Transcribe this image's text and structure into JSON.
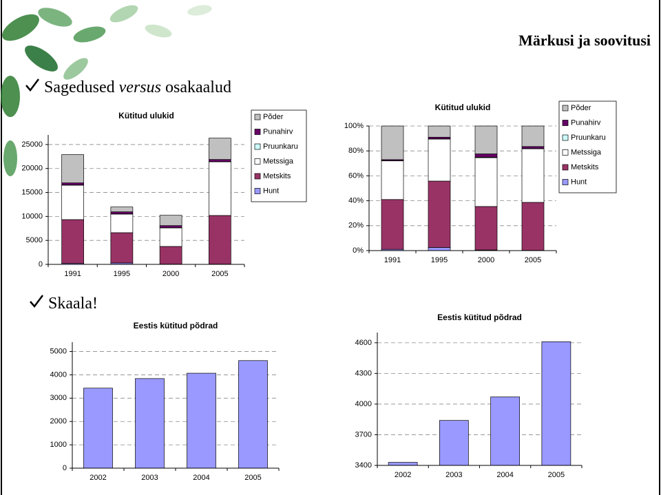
{
  "slide": {
    "title": "Märkusi ja soovitusi",
    "bullets": [
      [
        "Sagedused ",
        "versus",
        " osakaalud"
      ],
      [
        "Skaala!"
      ]
    ]
  },
  "chart_data": [
    {
      "type": "bar",
      "stacked": true,
      "title": "Kütitud ulukid",
      "categories": [
        "1991",
        "1995",
        "2000",
        "2005"
      ],
      "series": [
        {
          "name": "Hunt",
          "color": "#9999ff",
          "values": [
            200,
            300,
            50,
            50
          ]
        },
        {
          "name": "Metskits",
          "color": "#993366",
          "values": [
            9140,
            6310,
            3690,
            10150
          ]
        },
        {
          "name": "Metssiga",
          "color": "#ffffff",
          "values": [
            7180,
            3880,
            3870,
            11200
          ]
        },
        {
          "name": "Pruunkaru",
          "color": "#ccffff",
          "values": [
            50,
            40,
            40,
            40
          ]
        },
        {
          "name": "Punahirv",
          "color": "#660066",
          "values": [
            430,
            430,
            440,
            440
          ]
        },
        {
          "name": "Põder",
          "color": "#c0c0c0",
          "values": [
            5900,
            1010,
            2150,
            4450
          ]
        }
      ],
      "ylim": [
        0,
        27000
      ],
      "yticks": [
        0,
        5000,
        10000,
        15000,
        20000,
        25000
      ],
      "grid": true,
      "legend": "right"
    },
    {
      "type": "bar",
      "stacked": true,
      "title": "Kütitud ulukid",
      "categories": [
        "1991",
        "1995",
        "2000",
        "2005"
      ],
      "series": [
        {
          "name": "Hunt",
          "color": "#9999ff",
          "values": [
            1,
            2.5,
            0.5,
            0.2
          ]
        },
        {
          "name": "Metskits",
          "color": "#993366",
          "values": [
            40,
            53.3,
            34.9,
            38.5
          ]
        },
        {
          "name": "Metssiga",
          "color": "#ffffff",
          "values": [
            31,
            33.7,
            39.2,
            43
          ]
        },
        {
          "name": "Pruunkaru",
          "color": "#ccffff",
          "values": [
            0.2,
            0.2,
            0.4,
            0.2
          ]
        },
        {
          "name": "Punahirv",
          "color": "#660066",
          "values": [
            0.8,
            1.3,
            2.6,
            1.6
          ]
        },
        {
          "name": "Põder",
          "color": "#c0c0c0",
          "values": [
            27,
            9,
            22.4,
            16.5
          ]
        }
      ],
      "ylim": [
        0,
        100
      ],
      "yticks": [
        {
          "value": 0,
          "label": "0%"
        },
        {
          "value": 20,
          "label": "20%"
        },
        {
          "value": 40,
          "label": "40%"
        },
        {
          "value": 60,
          "label": "60%"
        },
        {
          "value": 80,
          "label": "80%"
        },
        {
          "value": 100,
          "label": "100%"
        }
      ],
      "grid": true,
      "legend": "right"
    },
    {
      "type": "bar",
      "title": "Eestis kütitud põdrad",
      "categories": [
        "2002",
        "2003",
        "2004",
        "2005"
      ],
      "series": [
        {
          "color": "#9999ff",
          "values": [
            3430,
            3840,
            4070,
            4610
          ]
        }
      ],
      "ylim": [
        0,
        5400
      ],
      "yticks": [
        0,
        1000,
        2000,
        3000,
        4000,
        5000
      ],
      "grid": true
    },
    {
      "type": "bar",
      "title": "Eestis kütitud põdrad",
      "categories": [
        "2002",
        "2003",
        "2004",
        "2005"
      ],
      "series": [
        {
          "color": "#9999ff",
          "values": [
            3430,
            3840,
            4070,
            4610
          ]
        }
      ],
      "ylim": [
        3400,
        4700
      ],
      "yticks": [
        3400,
        3700,
        4000,
        4300,
        4600
      ],
      "grid": true
    }
  ]
}
